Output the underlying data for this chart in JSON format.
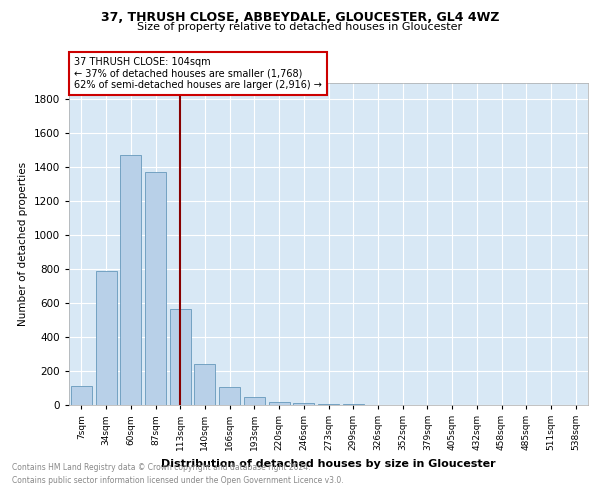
{
  "title1": "37, THRUSH CLOSE, ABBEYDALE, GLOUCESTER, GL4 4WZ",
  "title2": "Size of property relative to detached houses in Gloucester",
  "xlabel": "Distribution of detached houses by size in Gloucester",
  "ylabel": "Number of detached properties",
  "categories": [
    "7sqm",
    "34sqm",
    "60sqm",
    "87sqm",
    "113sqm",
    "140sqm",
    "166sqm",
    "193sqm",
    "220sqm",
    "246sqm",
    "273sqm",
    "299sqm",
    "326sqm",
    "352sqm",
    "379sqm",
    "405sqm",
    "432sqm",
    "458sqm",
    "485sqm",
    "511sqm",
    "538sqm"
  ],
  "values": [
    110,
    790,
    1470,
    1370,
    565,
    240,
    105,
    45,
    20,
    10,
    5,
    3,
    2,
    2,
    1,
    1,
    1,
    1,
    0,
    0,
    0
  ],
  "bar_color": "#b8d0e8",
  "bar_edge_color": "#6699bb",
  "vline_index": 4,
  "vline_color": "#880000",
  "annotation_line1": "37 THRUSH CLOSE: 104sqm",
  "annotation_line2": "← 37% of detached houses are smaller (1,768)",
  "annotation_line3": "62% of semi-detached houses are larger (2,916) →",
  "annotation_box_facecolor": "#ffffff",
  "annotation_box_edgecolor": "#cc0000",
  "ylim": [
    0,
    1900
  ],
  "yticks": [
    0,
    200,
    400,
    600,
    800,
    1000,
    1200,
    1400,
    1600,
    1800
  ],
  "footer1": "Contains HM Land Registry data © Crown copyright and database right 2024.",
  "footer2": "Contains public sector information licensed under the Open Government Licence v3.0.",
  "bg_color": "#d8e8f5",
  "fig_bg": "#ffffff"
}
